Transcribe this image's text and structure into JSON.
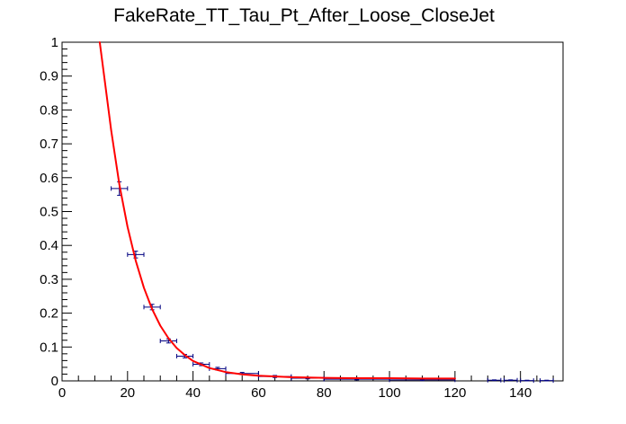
{
  "chart_data": {
    "type": "scatter",
    "title": "FakeRate_TT_Tau_Pt_After_Loose_CloseJet",
    "xlim": [
      0,
      153
    ],
    "ylim": [
      0,
      1
    ],
    "x_ticks": [
      0,
      20,
      40,
      60,
      80,
      100,
      120,
      140
    ],
    "y_ticks": [
      0,
      0.1,
      0.2,
      0.3,
      0.4,
      0.5,
      0.6,
      0.7,
      0.8,
      0.9,
      1
    ],
    "x_tick_labels": [
      "0",
      "20",
      "40",
      "60",
      "80",
      "100",
      "120",
      "140"
    ],
    "y_tick_labels": [
      "0",
      "0.1",
      "0.2",
      "0.3",
      "0.4",
      "0.5",
      "0.6",
      "0.7",
      "0.8",
      "0.9",
      "1"
    ],
    "grid": false,
    "points": [
      {
        "x": 17.5,
        "y": 0.568,
        "xerr": 2.5,
        "yerr": 0.02
      },
      {
        "x": 22.5,
        "y": 0.373,
        "xerr": 2.5,
        "yerr": 0.01
      },
      {
        "x": 27.5,
        "y": 0.218,
        "xerr": 2.5,
        "yerr": 0.008
      },
      {
        "x": 32.5,
        "y": 0.118,
        "xerr": 2.5,
        "yerr": 0.006
      },
      {
        "x": 37.5,
        "y": 0.073,
        "xerr": 2.5,
        "yerr": 0.005
      },
      {
        "x": 42.5,
        "y": 0.049,
        "xerr": 2.5,
        "yerr": 0.004
      },
      {
        "x": 47.5,
        "y": 0.036,
        "xerr": 2.5,
        "yerr": 0.004
      },
      {
        "x": 55,
        "y": 0.022,
        "xerr": 5,
        "yerr": 0.003
      },
      {
        "x": 65,
        "y": 0.013,
        "xerr": 5,
        "yerr": 0.003
      },
      {
        "x": 75,
        "y": 0.008,
        "xerr": 5,
        "yerr": 0.002
      },
      {
        "x": 90,
        "y": 0.005,
        "xerr": 10,
        "yerr": 0.002
      },
      {
        "x": 110,
        "y": 0.003,
        "xerr": 10,
        "yerr": 0.002
      },
      {
        "x": 132,
        "y": 0.002,
        "xerr": 2,
        "yerr": 0.001
      },
      {
        "x": 137,
        "y": 0.002,
        "xerr": 2,
        "yerr": 0.001
      },
      {
        "x": 142,
        "y": 0.001,
        "xerr": 2,
        "yerr": 0.001
      },
      {
        "x": 148,
        "y": 0.001,
        "xerr": 2,
        "yerr": 0.001
      }
    ],
    "fit": {
      "color": "#ff0000",
      "x_range": [
        11.5,
        120
      ],
      "curve": [
        {
          "x": 11.5,
          "y": 1.0
        },
        {
          "x": 13,
          "y": 0.89
        },
        {
          "x": 15,
          "y": 0.74
        },
        {
          "x": 17.5,
          "y": 0.58
        },
        {
          "x": 20,
          "y": 0.455
        },
        {
          "x": 22.5,
          "y": 0.355
        },
        {
          "x": 25,
          "y": 0.275
        },
        {
          "x": 27.5,
          "y": 0.212
        },
        {
          "x": 30,
          "y": 0.163
        },
        {
          "x": 32.5,
          "y": 0.126
        },
        {
          "x": 35,
          "y": 0.097
        },
        {
          "x": 37.5,
          "y": 0.076
        },
        {
          "x": 40,
          "y": 0.059
        },
        {
          "x": 45,
          "y": 0.038
        },
        {
          "x": 50,
          "y": 0.026
        },
        {
          "x": 55,
          "y": 0.019
        },
        {
          "x": 60,
          "y": 0.015
        },
        {
          "x": 70,
          "y": 0.011
        },
        {
          "x": 80,
          "y": 0.009
        },
        {
          "x": 90,
          "y": 0.008
        },
        {
          "x": 100,
          "y": 0.008
        },
        {
          "x": 110,
          "y": 0.007
        },
        {
          "x": 120,
          "y": 0.007
        }
      ]
    },
    "marker_color": "#000080",
    "axis_color": "#000000"
  }
}
